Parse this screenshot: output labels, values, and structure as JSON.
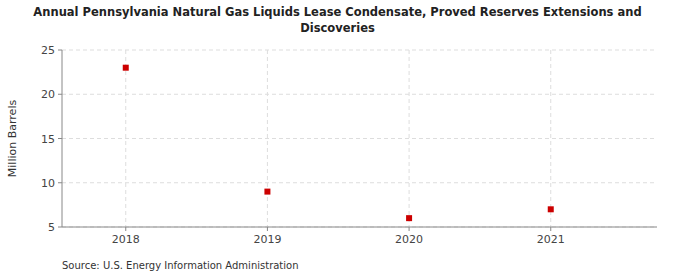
{
  "chart_data": {
    "type": "scatter",
    "title": "Annual Pennsylvania Natural Gas Liquids Lease Condensate, Proved Reserves Extensions and",
    "subtitle": "Discoveries",
    "y_label": "Million Barrels",
    "annotations": [
      "Source: U.S. Energy Information Administration"
    ],
    "x": [
      2018,
      2019,
      2020,
      2021
    ],
    "values": [
      23.0,
      9.0,
      6.0,
      7.0
    ],
    "color": "#cc0000",
    "marker": "square",
    "xlim": [
      2017.55,
      2021.75
    ],
    "xticks": [
      2018,
      2019,
      2020,
      2021
    ],
    "ylim": [
      5,
      25
    ],
    "yticks": [
      5,
      10,
      15,
      20,
      25
    ],
    "grid": true
  }
}
